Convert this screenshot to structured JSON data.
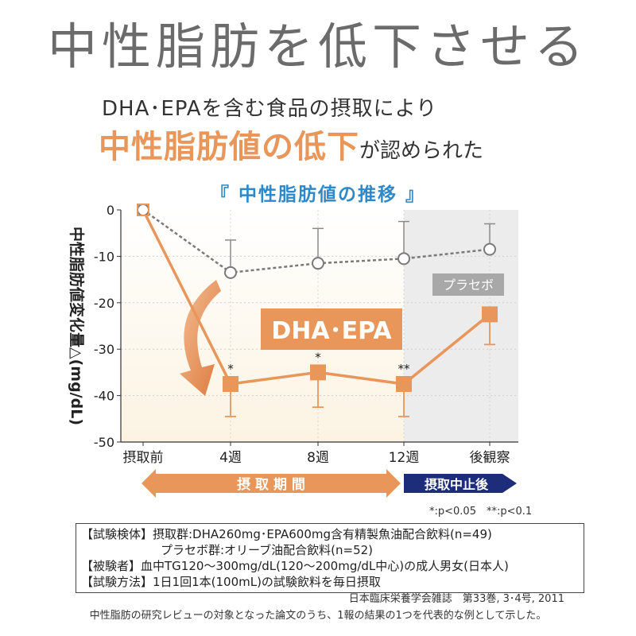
{
  "header": {
    "title": "中性脂肪を低下させる",
    "lead_line1": "DHA･EPAを含む食品の摂取により",
    "lead_highlight": "中性脂肪値の低下",
    "lead_rest": "が認められた"
  },
  "colors": {
    "dha": "#e8965a",
    "placebo": "#7a7a7a",
    "title_blue": "#2f88c7",
    "navy": "#1d2d7a"
  },
  "chart_data": {
    "type": "line",
    "title": "『 中性脂肪値の推移 』",
    "ylabel": "中性脂肪値変化量△(mg/dL)",
    "xlabel": "",
    "categories": [
      "摂取前",
      "4週",
      "8週",
      "12週",
      "後観察"
    ],
    "ylim": [
      -50,
      0
    ],
    "yticks": [
      "0",
      "-10",
      "-20",
      "-30",
      "-40",
      "-50"
    ],
    "ytick_values": [
      0,
      -10,
      -20,
      -30,
      -40,
      -50
    ],
    "grid": true,
    "series": [
      {
        "name": "DHA･EPA",
        "values": [
          0,
          -37.5,
          -35,
          -37.5,
          -22.5
        ],
        "err_low": [
          0,
          -44.5,
          -42.5,
          -44.5,
          -29
        ],
        "err_high": [
          0,
          -37.5,
          -35,
          -37.5,
          -22.5
        ],
        "significance": [
          "",
          "*",
          "*",
          "**",
          ""
        ]
      },
      {
        "name": "プラセボ",
        "values": [
          0,
          -13.5,
          -11.5,
          -10.5,
          -8.5
        ],
        "err_low": [
          0,
          -13.5,
          -11.5,
          -10.5,
          -8.5
        ],
        "err_high": [
          0,
          -6.5,
          -4,
          -2.5,
          -3
        ]
      }
    ],
    "periods": {
      "intake": "摂 取 期 間",
      "after": "摂取中止後"
    },
    "significance_note": "*:p<0.05　**:p<0.1"
  },
  "notes": {
    "line1": "【試験検体】摂取群:DHA260mg･EPA600mg含有精製魚油配合飲料(n=49)",
    "line2": "プラセボ群:オリーブ油配合飲料(n=52)",
    "line3": "【被験者】血中TG120～300mg/dL(120～200mg/dL中心)の成人男女(日本人)",
    "line4": "【試験方法】1日1回1本(100mL)の試験飲料を毎日摂取"
  },
  "citation": "日本臨床栄養学会雑誌　第33巻, 3･4号, 2011",
  "footnote": "中性脂肪の研究レビューの対象となった論文のうち、1報の結果の1つを代表的な例として示した。"
}
